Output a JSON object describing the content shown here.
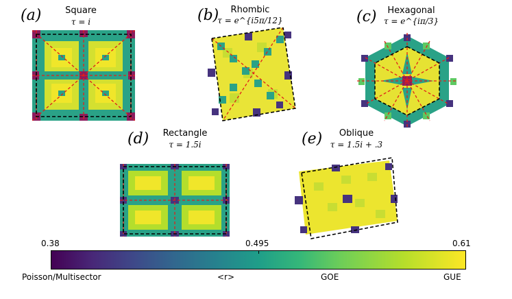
{
  "colors": {
    "dark": "#46337e",
    "teal": "#2aa287",
    "green": "#5ec962",
    "lime": "#a8db34",
    "yellow": "#f0e62a",
    "red_dash": "#e0201a",
    "magenta": "#8b1c5e"
  },
  "panels": [
    {
      "letter": "(a)",
      "name": "Square",
      "tau": "τ = i"
    },
    {
      "letter": "(b)",
      "name": "Rhombic",
      "tau": "τ = e^{i5π/12}"
    },
    {
      "letter": "(c)",
      "name": "Hexagonal",
      "tau": "τ = e^{iπ/3}"
    },
    {
      "letter": "(d)",
      "name": "Rectangle",
      "tau": "τ = 1.5i"
    },
    {
      "letter": "(e)",
      "name": "Oblique",
      "tau": "τ = 1.5i + .3"
    }
  ],
  "colorbar": {
    "min_label": "0.38",
    "mid_label": "0.495",
    "max_label": "0.61",
    "label_left": "Poisson/Multisector",
    "label_center": "<r>",
    "label_goe": "GOE",
    "label_gue": "GUE"
  }
}
